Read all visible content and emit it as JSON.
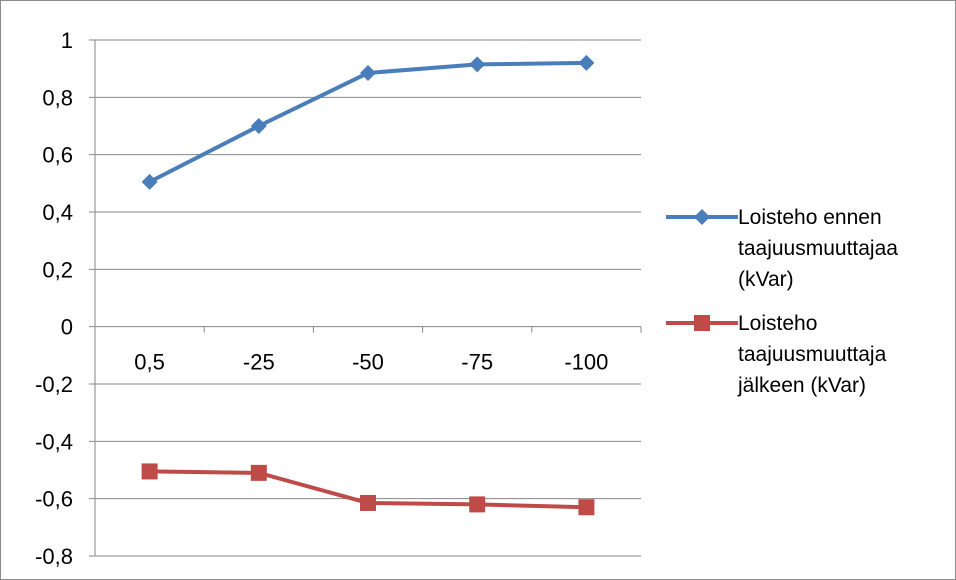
{
  "chart_data": {
    "type": "line",
    "categories": [
      "0,5",
      "-25",
      "-50",
      "-75",
      "-100"
    ],
    "yticks": [
      "1",
      "0,8",
      "0,6",
      "0,4",
      "0,2",
      "0",
      "-0,2",
      "-0,4",
      "-0,6",
      "-0,8"
    ],
    "ylim": [
      -0.8,
      1
    ],
    "grid": true,
    "legend_position": "right",
    "series": [
      {
        "name": "Loisteho ennen taajuusmuuttajaa (kVar)",
        "values": [
          0.505,
          0.7,
          0.885,
          0.915,
          0.92
        ],
        "color": "#4a7ebb",
        "marker": "diamond"
      },
      {
        "name": "Loisteho taajuusmuuttaja jälkeen (kVar)",
        "values": [
          -0.505,
          -0.51,
          -0.615,
          -0.62,
          -0.63
        ],
        "color": "#be4b48",
        "marker": "square"
      }
    ]
  }
}
